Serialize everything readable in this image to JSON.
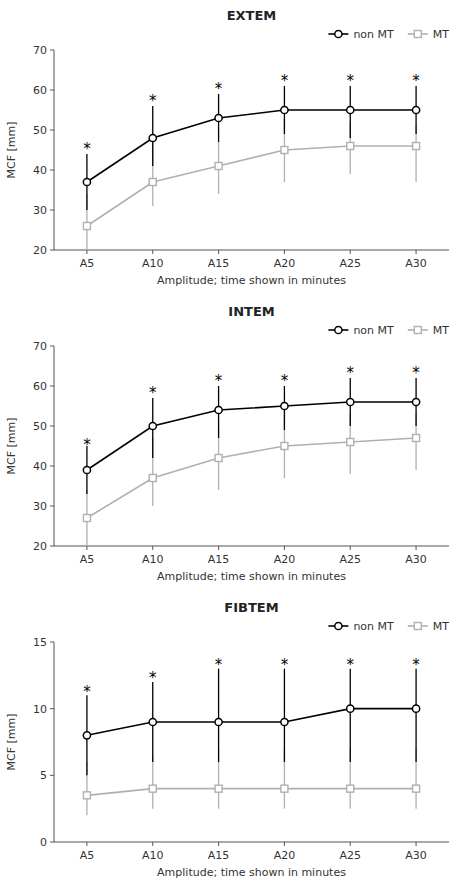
{
  "chart_data": [
    {
      "type": "line",
      "title": "EXTEM",
      "categories": [
        "A5",
        "A10",
        "A15",
        "A20",
        "A25",
        "A30"
      ],
      "xlabel": "Amplitude; time shown in minutes",
      "ylabel": "MCF [mm]",
      "ylim": [
        20,
        70
      ],
      "yticks": [
        20,
        30,
        40,
        50,
        60,
        70
      ],
      "grid": false,
      "legend": "upper right",
      "series": [
        {
          "name": "non MT",
          "color": "#000000",
          "marker": "circle",
          "line_style": "solid",
          "values": [
            37,
            48,
            53,
            55,
            55,
            55
          ],
          "error_low": [
            7,
            7,
            6,
            6,
            7,
            6
          ],
          "error_high": [
            7,
            8,
            6,
            6,
            6,
            6
          ]
        },
        {
          "name": "MT",
          "color": "#b0b0b0",
          "marker": "square",
          "line_style": "solid",
          "values": [
            26,
            37,
            41,
            45,
            46,
            46
          ],
          "error_low": [
            6,
            6,
            7,
            8,
            7,
            9
          ],
          "error_high": [
            8,
            10,
            6,
            8,
            6,
            5
          ]
        }
      ],
      "annotations": [
        {
          "text": "*",
          "x": "A5",
          "y": 46
        },
        {
          "text": "*",
          "x": "A10",
          "y": 58
        },
        {
          "text": "*",
          "x": "A15",
          "y": 61
        },
        {
          "text": "*",
          "x": "A20",
          "y": 63
        },
        {
          "text": "*",
          "x": "A25",
          "y": 63
        },
        {
          "text": "*",
          "x": "A30",
          "y": 63
        }
      ]
    },
    {
      "type": "line",
      "title": "INTEM",
      "categories": [
        "A5",
        "A10",
        "A15",
        "A20",
        "A25",
        "A30"
      ],
      "xlabel": "Amplitude; time shown in minutes",
      "ylabel": "MCF [mm]",
      "ylim": [
        20,
        70
      ],
      "yticks": [
        20,
        30,
        40,
        50,
        60,
        70
      ],
      "grid": false,
      "legend": "upper right",
      "series": [
        {
          "name": "non MT",
          "color": "#000000",
          "marker": "circle",
          "line_style": "solid",
          "values": [
            39,
            50,
            54,
            55,
            56,
            56
          ],
          "error_low": [
            6,
            8,
            7,
            6,
            6,
            6
          ],
          "error_high": [
            6,
            7,
            6,
            5,
            6,
            6
          ]
        },
        {
          "name": "MT",
          "color": "#b0b0b0",
          "marker": "square",
          "line_style": "solid",
          "values": [
            27,
            37,
            42,
            45,
            46,
            47
          ],
          "error_low": [
            7,
            7,
            8,
            8,
            8,
            8
          ],
          "error_high": [
            7,
            10,
            8,
            10,
            7,
            6
          ]
        }
      ],
      "annotations": [
        {
          "text": "*",
          "x": "A5",
          "y": 46
        },
        {
          "text": "*",
          "x": "A10",
          "y": 59
        },
        {
          "text": "*",
          "x": "A15",
          "y": 62
        },
        {
          "text": "*",
          "x": "A20",
          "y": 62
        },
        {
          "text": "*",
          "x": "A25",
          "y": 64
        },
        {
          "text": "*",
          "x": "A30",
          "y": 64
        }
      ]
    },
    {
      "type": "line",
      "title": "FIBTEM",
      "categories": [
        "A5",
        "A10",
        "A15",
        "A20",
        "A25",
        "A30"
      ],
      "xlabel": "Amplitude; time shown in minutes",
      "ylabel": "MCF [mm]",
      "ylim": [
        0,
        15
      ],
      "yticks": [
        0,
        5,
        10,
        15
      ],
      "grid": false,
      "legend": "upper right",
      "series": [
        {
          "name": "non MT",
          "color": "#000000",
          "marker": "circle",
          "line_style": "solid",
          "values": [
            8,
            9,
            9,
            9,
            10,
            10
          ],
          "error_low": [
            3,
            3,
            3,
            3,
            4,
            4
          ],
          "error_high": [
            3,
            3,
            4,
            4,
            3,
            3
          ]
        },
        {
          "name": "MT",
          "color": "#b0b0b0",
          "marker": "square",
          "line_style": "solid",
          "values": [
            3.5,
            4,
            4,
            4,
            4,
            4
          ],
          "error_low": [
            1.5,
            1.5,
            1.5,
            1.5,
            1.5,
            1.5
          ],
          "error_high": [
            2.5,
            2.5,
            3,
            3,
            3,
            3
          ]
        }
      ],
      "annotations": [
        {
          "text": "*",
          "x": "A5",
          "y": 11.5
        },
        {
          "text": "*",
          "x": "A10",
          "y": 12.5
        },
        {
          "text": "*",
          "x": "A15",
          "y": 13.5
        },
        {
          "text": "*",
          "x": "A20",
          "y": 13.5
        },
        {
          "text": "*",
          "x": "A25",
          "y": 13.5
        },
        {
          "text": "*",
          "x": "A30",
          "y": 13.5
        }
      ]
    }
  ]
}
